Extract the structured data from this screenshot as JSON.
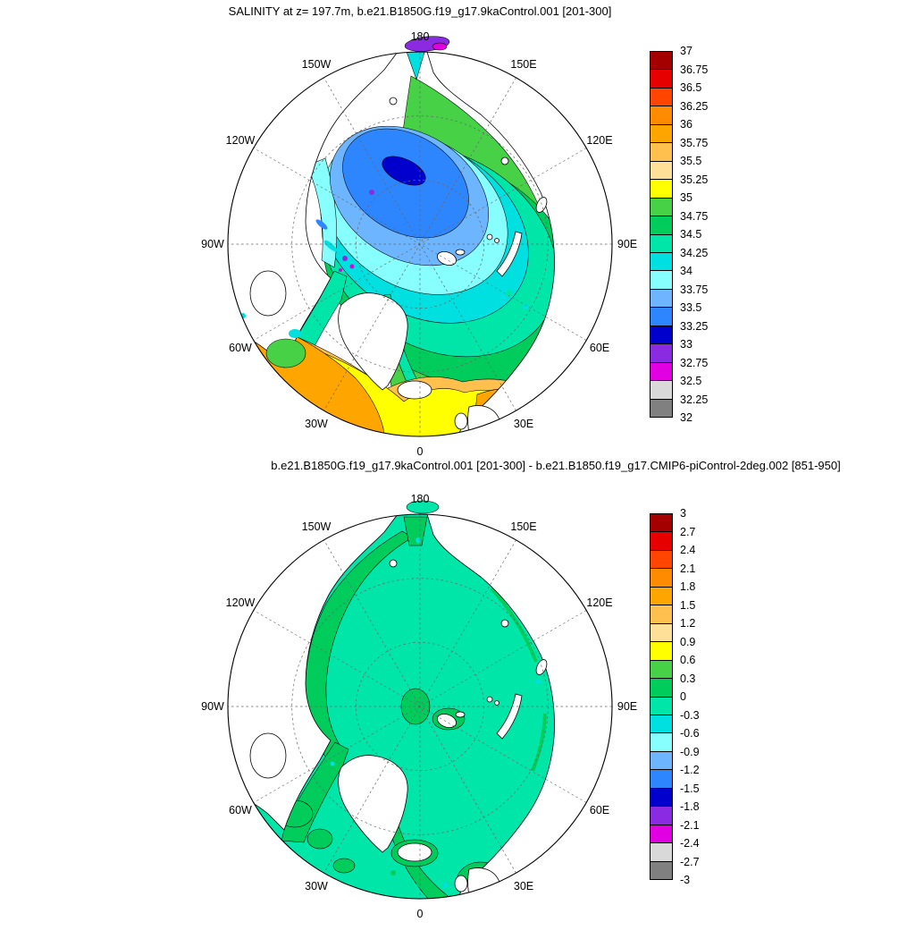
{
  "palette": [
    "#a50000",
    "#e60000",
    "#ff4500",
    "#ff8c00",
    "#ffa500",
    "#ffc04d",
    "#ffe099",
    "#ffff00",
    "#47d147",
    "#00cc5c",
    "#00e6a8",
    "#00e0e0",
    "#87ffff",
    "#6eb5ff",
    "#2e86ff",
    "#0000cd",
    "#8a2be2",
    "#e100e1",
    "#d9d9d9",
    "#808080"
  ],
  "panels": [
    {
      "title": "SALINITY at z= 197.7m, b.e21.B1850G.f19_g17.9kaControl.001 [201-300]",
      "meridian_labels": [
        "180",
        "150E",
        "120E",
        "90E",
        "60E",
        "30E",
        "0",
        "30W",
        "60W",
        "90W",
        "120W",
        "150W"
      ],
      "colorbar_labels": [
        "37",
        "36.75",
        "36.5",
        "36.25",
        "36",
        "35.75",
        "35.5",
        "35.25",
        "35",
        "34.75",
        "34.5",
        "34.25",
        "34",
        "33.75",
        "33.5",
        "33.25",
        "33",
        "32.75",
        "32.5",
        "32.25",
        "32"
      ]
    },
    {
      "title": "b.e21.B1850G.f19_g17.9kaControl.001 [201-300] - b.e21.B1850.f19_g17.CMIP6-piControl-2deg.002 [851-950]",
      "meridian_labels": [
        "180",
        "150E",
        "120E",
        "90E",
        "60E",
        "30E",
        "0",
        "30W",
        "60W",
        "90W",
        "120W",
        "150W"
      ],
      "colorbar_labels": [
        "3",
        "2.7",
        "2.4",
        "2.1",
        "1.8",
        "1.5",
        "1.2",
        "0.9",
        "0.6",
        "0.3",
        "0",
        "-0.3",
        "-0.6",
        "-0.9",
        "-1.2",
        "-1.5",
        "-1.8",
        "-2.1",
        "-2.4",
        "-2.7",
        "-3"
      ]
    }
  ],
  "chart_data": [
    {
      "type": "heatmap",
      "variant": "north-polar-stereographic filled contour map",
      "title": "SALINITY at z= 197.7m, b.e21.B1850G.f19_g17.9kaControl.001 [201-300]",
      "pole": "North Pole at center",
      "meridians_clockwise_from_top": [
        "180",
        "150E",
        "120E",
        "90E",
        "60E",
        "30E",
        "0",
        "30W",
        "60W",
        "90W",
        "120W",
        "150W"
      ],
      "contour_levels": [
        32,
        32.25,
        32.5,
        32.75,
        33,
        33.25,
        33.5,
        33.75,
        34,
        34.25,
        34.5,
        34.75,
        35,
        35.25,
        35.5,
        35.75,
        36,
        36.25,
        36.5,
        36.75,
        37
      ],
      "colorbar_colors_top_to_bottom": [
        "#a50000",
        "#e60000",
        "#ff4500",
        "#ff8c00",
        "#ffa500",
        "#ffc04d",
        "#ffe099",
        "#ffff00",
        "#47d147",
        "#00cc5c",
        "#00e6a8",
        "#00e0e0",
        "#87ffff",
        "#6eb5ff",
        "#2e86ff",
        "#0000cd",
        "#8a2be2",
        "#e100e1",
        "#d9d9d9",
        "#808080"
      ],
      "legend_position": "right",
      "grid": "dashed graticule, circular map boundary",
      "regions": [
        {
          "region": "central Arctic Ocean minimum northeast of pole (dark blue patch)",
          "value_range": "33 - 33.25"
        },
        {
          "region": "inner Arctic basin rings toward Canada side",
          "value_range": "33.25 - 34"
        },
        {
          "region": "outer Arctic basin, East Siberian and Beaufort shelves",
          "value_range": "34 - 34.5"
        },
        {
          "region": "Barents, Kara, Greenland and Norwegian Seas (green)",
          "value_range": "34.5 - 35"
        },
        {
          "region": "subpolar North Atlantic band (yellow)",
          "value_range": "35 - 35.5"
        },
        {
          "region": "southern map edge of North Atlantic, 30W-30E (orange)",
          "value_range": "35.5 - 36.25"
        },
        {
          "region": "Canadian Archipelago channels and Bering Strait spots (purple/magenta)",
          "value_range": "32.5 - 33"
        }
      ]
    },
    {
      "type": "heatmap",
      "variant": "north-polar-stereographic filled contour difference map",
      "title": "b.e21.B1850G.f19_g17.9kaControl.001 [201-300] - b.e21.B1850.f19_g17.CMIP6-piControl-2deg.002 [851-950]",
      "pole": "North Pole at center",
      "meridians_clockwise_from_top": [
        "180",
        "150E",
        "120E",
        "90E",
        "60E",
        "30E",
        "0",
        "30W",
        "60W",
        "90W",
        "120W",
        "150W"
      ],
      "contour_levels": [
        -3,
        -2.7,
        -2.4,
        -2.1,
        -1.8,
        -1.5,
        -1.2,
        -0.9,
        -0.6,
        -0.3,
        0,
        0.3,
        0.6,
        0.9,
        1.2,
        1.5,
        1.8,
        2.1,
        2.4,
        2.7,
        3
      ],
      "colorbar_colors_top_to_bottom": [
        "#a50000",
        "#e60000",
        "#ff4500",
        "#ff8c00",
        "#ffa500",
        "#ffc04d",
        "#ffe099",
        "#ffff00",
        "#47d147",
        "#00cc5c",
        "#00e6a8",
        "#00e0e0",
        "#87ffff",
        "#6eb5ff",
        "#2e86ff",
        "#0000cd",
        "#8a2be2",
        "#e100e1",
        "#d9d9d9",
        "#808080"
      ],
      "legend_position": "right",
      "grid": "dashed graticule, circular map boundary",
      "regions": [
        {
          "region": "most of Arctic Ocean and North Atlantic (turquoise)",
          "value_range": "-0.3 - 0"
        },
        {
          "region": "coastal margins: Canadian Archipelago, Baffin Bay, East Greenland, Iceland, British Isles, Norwegian coast, Bering Strait, small patch near pole (green)",
          "value_range": "0 - 0.3"
        },
        {
          "region": "scattered small specks along margins (cyan)",
          "value_range": "-0.6 - -0.3"
        }
      ]
    }
  ]
}
